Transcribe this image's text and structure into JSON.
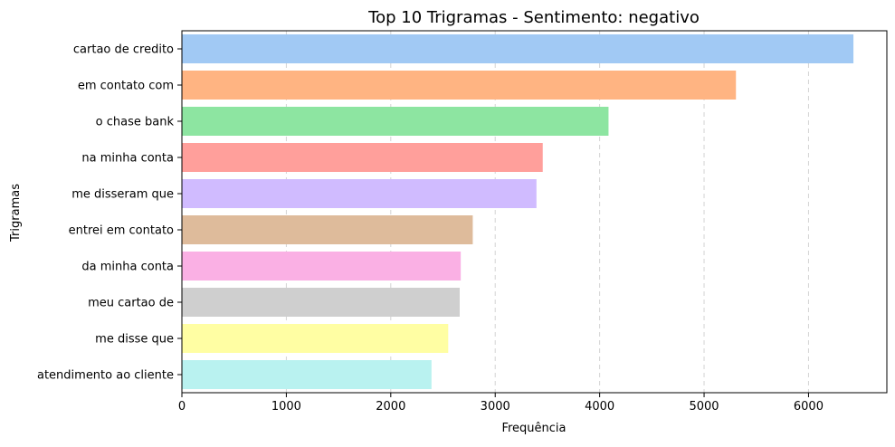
{
  "chart_data": {
    "type": "bar",
    "orientation": "horizontal",
    "title": "Top 10 Trigramas - Sentimento: negativo",
    "xlabel": "Frequência",
    "ylabel": "Trigramas",
    "categories": [
      "cartao de credito",
      "em contato com",
      "o chase bank",
      "na minha conta",
      "me disseram que",
      "entrei em contato",
      "da minha conta",
      "meu cartao de",
      "me disse que",
      "atendimento ao cliente"
    ],
    "values": [
      6430,
      5305,
      4085,
      3455,
      3395,
      2785,
      2670,
      2660,
      2550,
      2390
    ],
    "colors": [
      "#a1c9f4",
      "#ffb482",
      "#8de5a1",
      "#ff9f9b",
      "#d0bbff",
      "#debb9b",
      "#fab0e4",
      "#cfcfcf",
      "#fffea3",
      "#b9f2f0"
    ],
    "xlim": [
      0,
      6750
    ],
    "xticks": [
      0,
      1000,
      2000,
      3000,
      4000,
      5000,
      6000
    ],
    "xtick_labels": [
      "0",
      "1000",
      "2000",
      "3000",
      "4000",
      "5000",
      "6000"
    ],
    "grid": "x-dashed"
  }
}
